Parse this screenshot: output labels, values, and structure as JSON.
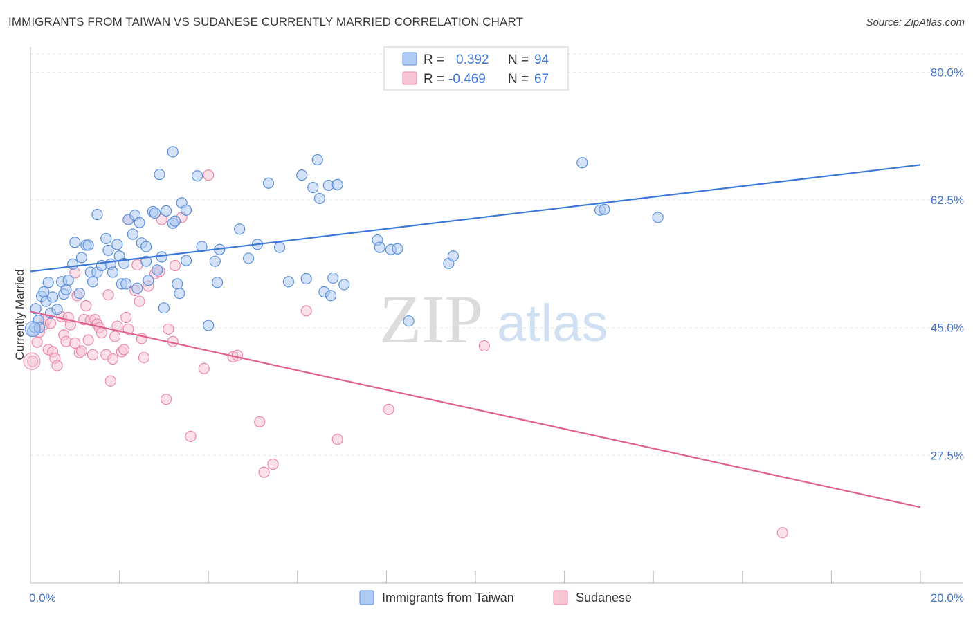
{
  "title": "IMMIGRANTS FROM TAIWAN VS SUDANESE CURRENTLY MARRIED CORRELATION CHART",
  "source": "Source: ZipAtlas.com",
  "watermark": {
    "zip": "ZIP",
    "atlas": "atlas"
  },
  "colors": {
    "blue": "#3c78d8",
    "blue_fill": "#aecbf3",
    "blue_stroke": "#5b8fdc",
    "pink": "#e0608e",
    "pink_fill": "#f7c6d5",
    "pink_stroke": "#ea88a8",
    "tick": "#3f72c4"
  },
  "legend": {
    "rows": [
      {
        "r_label": "R =",
        "r_value": "0.392",
        "n_label": "N =",
        "n_value": "94"
      },
      {
        "r_label": "R =",
        "r_value": "-0.469",
        "n_label": "N =",
        "n_value": "67"
      }
    ]
  },
  "bottom_legend": [
    "Immigrants from Taiwan",
    "Sudanese"
  ],
  "chart_data": {
    "type": "scatter",
    "title": "IMMIGRANTS FROM TAIWAN VS SUDANESE CURRENTLY MARRIED CORRELATION CHART",
    "xlabel": "",
    "ylabel": "Currently Married",
    "xlim": [
      0,
      20
    ],
    "ylim": [
      10,
      82.5
    ],
    "x_tick_labels": [
      "0.0%",
      "20.0%"
    ],
    "y_ticks": [
      27.5,
      45.0,
      62.5,
      80.0
    ],
    "y_tick_labels": [
      "27.5%",
      "45.0%",
      "62.5%",
      "80.0%"
    ],
    "grid": true,
    "legend_position": "top-center",
    "series": [
      {
        "name": "Immigrants from Taiwan",
        "color": "#3c78d8",
        "trend": {
          "x": [
            0,
            20
          ],
          "y": [
            52.7,
            67.3
          ]
        },
        "points": [
          [
            0.05,
            44.5
          ],
          [
            0.1,
            45.0
          ],
          [
            0.12,
            47.6
          ],
          [
            0.18,
            46.0
          ],
          [
            0.2,
            45.0
          ],
          [
            0.25,
            49.3
          ],
          [
            0.3,
            49.9
          ],
          [
            0.35,
            48.6
          ],
          [
            0.4,
            51.2
          ],
          [
            0.45,
            47.0
          ],
          [
            0.5,
            49.2
          ],
          [
            0.6,
            47.5
          ],
          [
            0.7,
            51.3
          ],
          [
            0.75,
            49.6
          ],
          [
            0.8,
            50.2
          ],
          [
            0.85,
            51.5
          ],
          [
            0.95,
            53.7
          ],
          [
            1.0,
            56.7
          ],
          [
            1.1,
            49.7
          ],
          [
            1.15,
            54.6
          ],
          [
            1.25,
            56.3
          ],
          [
            1.3,
            56.3
          ],
          [
            1.35,
            52.6
          ],
          [
            1.4,
            51.3
          ],
          [
            1.5,
            52.6
          ],
          [
            1.5,
            60.5
          ],
          [
            1.6,
            53.5
          ],
          [
            1.7,
            57.2
          ],
          [
            1.75,
            55.6
          ],
          [
            1.8,
            53.7
          ],
          [
            1.85,
            52.6
          ],
          [
            1.95,
            56.4
          ],
          [
            2.0,
            54.8
          ],
          [
            2.05,
            51.0
          ],
          [
            2.1,
            53.8
          ],
          [
            2.15,
            51.0
          ],
          [
            2.2,
            59.8
          ],
          [
            2.3,
            57.8
          ],
          [
            2.35,
            60.4
          ],
          [
            2.4,
            50.4
          ],
          [
            2.45,
            59.4
          ],
          [
            2.5,
            56.6
          ],
          [
            2.6,
            56.1
          ],
          [
            2.6,
            54.1
          ],
          [
            2.65,
            51.5
          ],
          [
            2.75,
            60.9
          ],
          [
            2.8,
            60.7
          ],
          [
            2.85,
            52.9
          ],
          [
            2.9,
            66.0
          ],
          [
            2.95,
            54.7
          ],
          [
            3.0,
            47.7
          ],
          [
            3.05,
            61.0
          ],
          [
            3.2,
            59.3
          ],
          [
            3.25,
            59.6
          ],
          [
            3.3,
            51.0
          ],
          [
            3.35,
            49.7
          ],
          [
            3.4,
            62.1
          ],
          [
            3.5,
            61.1
          ],
          [
            3.5,
            54.2
          ],
          [
            3.75,
            65.8
          ],
          [
            3.85,
            56.1
          ],
          [
            4.0,
            45.3
          ],
          [
            4.15,
            54.1
          ],
          [
            4.2,
            51.2
          ],
          [
            4.25,
            55.7
          ],
          [
            4.7,
            58.5
          ],
          [
            4.9,
            54.5
          ],
          [
            5.1,
            56.4
          ],
          [
            5.35,
            64.8
          ],
          [
            5.6,
            56.0
          ],
          [
            5.8,
            51.3
          ],
          [
            6.1,
            65.9
          ],
          [
            6.2,
            51.7
          ],
          [
            6.35,
            64.2
          ],
          [
            6.45,
            68.0
          ],
          [
            6.5,
            62.7
          ],
          [
            6.6,
            49.9
          ],
          [
            6.7,
            64.5
          ],
          [
            6.75,
            49.4
          ],
          [
            6.8,
            51.8
          ],
          [
            6.9,
            64.6
          ],
          [
            7.05,
            50.9
          ],
          [
            7.8,
            57.0
          ],
          [
            7.85,
            56.0
          ],
          [
            8.1,
            55.7
          ],
          [
            8.25,
            55.8
          ],
          [
            8.5,
            45.9
          ],
          [
            9.4,
            53.8
          ],
          [
            9.5,
            54.8
          ],
          [
            12.4,
            67.6
          ],
          [
            12.8,
            61.1
          ],
          [
            12.9,
            61.2
          ],
          [
            14.1,
            60.1
          ],
          [
            3.2,
            69.1
          ]
        ]
      },
      {
        "name": "Sudanese",
        "color": "#e0608e",
        "trend": {
          "x": [
            0,
            20
          ],
          "y": [
            47.2,
            20.4
          ]
        },
        "points": [
          [
            0.05,
            40.4
          ],
          [
            0.15,
            43.0
          ],
          [
            0.2,
            44.4
          ],
          [
            0.3,
            45.4
          ],
          [
            0.35,
            46.0
          ],
          [
            0.4,
            42.0
          ],
          [
            0.45,
            45.6
          ],
          [
            0.5,
            41.7
          ],
          [
            0.55,
            40.8
          ],
          [
            0.6,
            39.8
          ],
          [
            0.7,
            46.5
          ],
          [
            0.75,
            44.0
          ],
          [
            0.8,
            43.1
          ],
          [
            0.85,
            46.4
          ],
          [
            0.9,
            45.4
          ],
          [
            1.0,
            52.5
          ],
          [
            1.0,
            42.9
          ],
          [
            1.05,
            49.4
          ],
          [
            1.1,
            41.6
          ],
          [
            1.15,
            41.8
          ],
          [
            1.2,
            46.1
          ],
          [
            1.25,
            48.0
          ],
          [
            1.3,
            43.3
          ],
          [
            1.35,
            46.0
          ],
          [
            1.4,
            41.3
          ],
          [
            1.45,
            46.1
          ],
          [
            1.5,
            45.5
          ],
          [
            1.55,
            45.0
          ],
          [
            1.6,
            44.3
          ],
          [
            1.7,
            41.3
          ],
          [
            1.75,
            49.5
          ],
          [
            1.8,
            37.7
          ],
          [
            1.85,
            40.7
          ],
          [
            1.9,
            43.8
          ],
          [
            1.95,
            45.2
          ],
          [
            2.05,
            41.7
          ],
          [
            2.1,
            42.0
          ],
          [
            2.15,
            46.4
          ],
          [
            2.2,
            44.8
          ],
          [
            2.35,
            50.1
          ],
          [
            2.4,
            53.6
          ],
          [
            2.45,
            48.6
          ],
          [
            2.5,
            43.5
          ],
          [
            2.55,
            40.9
          ],
          [
            2.65,
            50.7
          ],
          [
            2.8,
            52.4
          ],
          [
            2.9,
            52.7
          ],
          [
            2.95,
            59.8
          ],
          [
            3.05,
            35.2
          ],
          [
            3.1,
            44.8
          ],
          [
            3.2,
            43.1
          ],
          [
            3.25,
            53.5
          ],
          [
            3.4,
            60.1
          ],
          [
            3.6,
            30.1
          ],
          [
            3.9,
            39.4
          ],
          [
            4.55,
            41.0
          ],
          [
            4.65,
            41.2
          ],
          [
            5.15,
            32.1
          ],
          [
            5.25,
            25.2
          ],
          [
            5.45,
            26.3
          ],
          [
            6.2,
            47.3
          ],
          [
            6.9,
            29.7
          ],
          [
            8.05,
            33.8
          ],
          [
            10.2,
            42.5
          ],
          [
            16.9,
            16.9
          ],
          [
            4.0,
            65.9
          ],
          [
            2.2,
            59.8
          ]
        ]
      }
    ]
  }
}
